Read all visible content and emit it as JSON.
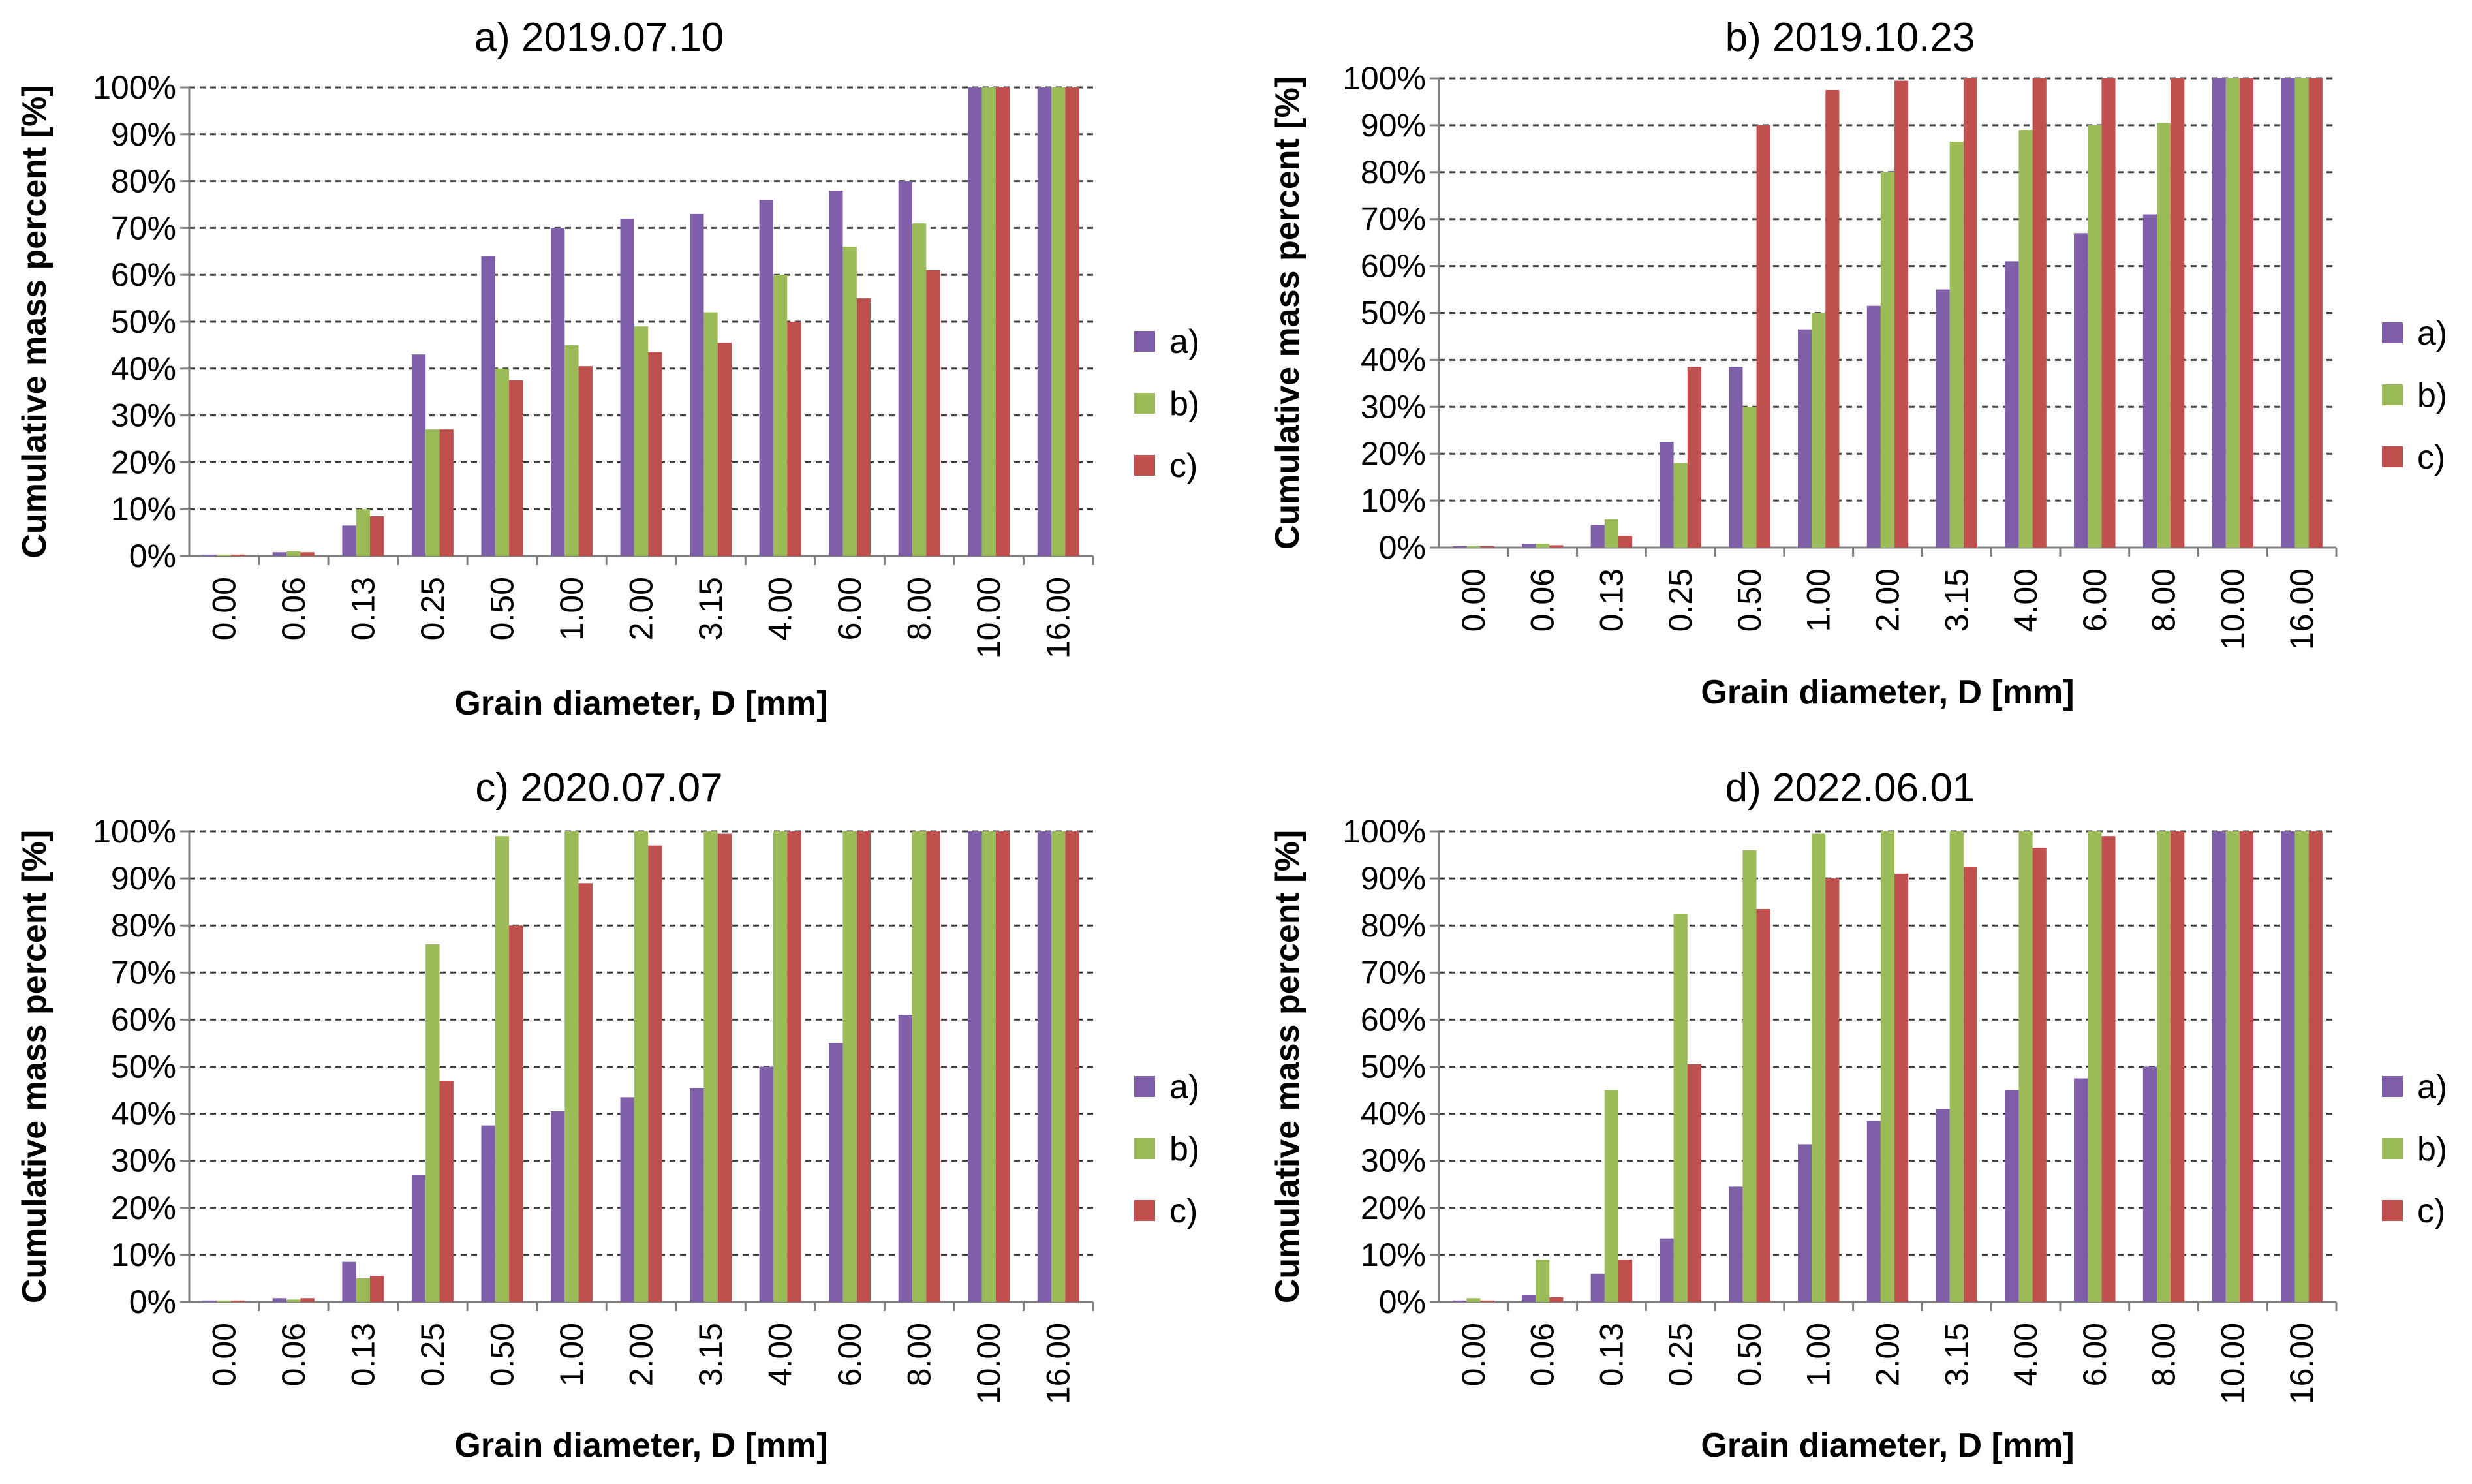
{
  "chart_data": [
    {
      "type": "bar",
      "title": "a) 2019.07.10",
      "xlabel": "Grain diameter, D [mm]",
      "ylabel": "Cumulative mass percent [%]",
      "ylim": [
        0,
        100
      ],
      "yticks": [
        "0%",
        "10%",
        "20%",
        "30%",
        "40%",
        "50%",
        "60%",
        "70%",
        "80%",
        "90%",
        "100%"
      ],
      "grid": true,
      "legend": "right",
      "categories": [
        "0.00",
        "0.06",
        "0.13",
        "0.25",
        "0.50",
        "1.00",
        "2.00",
        "3.15",
        "4.00",
        "6.00",
        "8.00",
        "10.00",
        "16.00"
      ],
      "series": [
        {
          "name": "a)",
          "color": "#7F5FA8",
          "values": [
            0.3,
            0.8,
            6.5,
            43,
            64,
            70,
            72,
            73,
            76,
            78,
            80,
            100,
            100
          ]
        },
        {
          "name": "b)",
          "color": "#9BBB59",
          "values": [
            0.3,
            1.0,
            10,
            27,
            40,
            45,
            49,
            52,
            60,
            66,
            71,
            100,
            100
          ]
        },
        {
          "name": "c)",
          "color": "#C0504D",
          "values": [
            0.3,
            0.8,
            8.5,
            27,
            37.5,
            40.5,
            43.5,
            45.5,
            50,
            55,
            61,
            100,
            100
          ]
        }
      ]
    },
    {
      "type": "bar",
      "title": "b) 2019.10.23",
      "xlabel": "Grain diameter, D [mm]",
      "ylabel": "Cumulative mass percent [%]",
      "ylim": [
        0,
        100
      ],
      "yticks": [
        "0%",
        "10%",
        "20%",
        "30%",
        "40%",
        "50%",
        "60%",
        "70%",
        "80%",
        "90%",
        "100%"
      ],
      "grid": true,
      "legend": "right",
      "categories": [
        "0.00",
        "0.06",
        "0.13",
        "0.25",
        "0.50",
        "1.00",
        "2.00",
        "3.15",
        "4.00",
        "6.00",
        "8.00",
        "10.00",
        "16.00"
      ],
      "series": [
        {
          "name": "a)",
          "color": "#7F5FA8",
          "values": [
            0.3,
            0.8,
            4.8,
            22.5,
            38.5,
            46.5,
            51.5,
            55,
            61,
            67,
            71,
            100,
            100
          ]
        },
        {
          "name": "b)",
          "color": "#9BBB59",
          "values": [
            0.3,
            0.8,
            6,
            18,
            30,
            50,
            80,
            86.5,
            89,
            90,
            90.5,
            100,
            100
          ]
        },
        {
          "name": "c)",
          "color": "#C0504D",
          "values": [
            0.3,
            0.5,
            2.5,
            38.5,
            90,
            97.5,
            99.5,
            100,
            100,
            100,
            100,
            100,
            100
          ]
        }
      ]
    },
    {
      "type": "bar",
      "title": "c) 2020.07.07",
      "xlabel": "Grain diameter, D [mm]",
      "ylabel": "Cumulative mass percent [%]",
      "ylim": [
        0,
        100
      ],
      "yticks": [
        "0%",
        "10%",
        "20%",
        "30%",
        "40%",
        "50%",
        "60%",
        "70%",
        "80%",
        "90%",
        "100%"
      ],
      "grid": true,
      "legend": "right",
      "categories": [
        "0.00",
        "0.06",
        "0.13",
        "0.25",
        "0.50",
        "1.00",
        "2.00",
        "3.15",
        "4.00",
        "6.00",
        "8.00",
        "10.00",
        "16.00"
      ],
      "series": [
        {
          "name": "a)",
          "color": "#7F5FA8",
          "values": [
            0.3,
            0.8,
            8.5,
            27,
            37.5,
            40.5,
            43.5,
            45.5,
            50,
            55,
            61,
            100,
            100
          ]
        },
        {
          "name": "b)",
          "color": "#9BBB59",
          "values": [
            0.3,
            0.5,
            5,
            76,
            99,
            100,
            100,
            100,
            100,
            100,
            100,
            100,
            100
          ]
        },
        {
          "name": "c)",
          "color": "#C0504D",
          "values": [
            0.3,
            0.8,
            5.5,
            47,
            80,
            89,
            97,
            99.5,
            100,
            100,
            100,
            100,
            100
          ]
        }
      ]
    },
    {
      "type": "bar",
      "title": "d) 2022.06.01",
      "xlabel": "Grain diameter, D [mm]",
      "ylabel": "Cumulative mass percent [%]",
      "ylim": [
        0,
        100
      ],
      "yticks": [
        "0%",
        "10%",
        "20%",
        "30%",
        "40%",
        "50%",
        "60%",
        "70%",
        "80%",
        "90%",
        "100%"
      ],
      "grid": true,
      "legend": "right",
      "categories": [
        "0.00",
        "0.06",
        "0.13",
        "0.25",
        "0.50",
        "1.00",
        "2.00",
        "3.15",
        "4.00",
        "6.00",
        "8.00",
        "10.00",
        "16.00"
      ],
      "series": [
        {
          "name": "a)",
          "color": "#7F5FA8",
          "values": [
            0.3,
            1.5,
            6,
            13.5,
            24.5,
            33.5,
            38.5,
            41,
            45,
            47.5,
            50,
            100,
            100
          ]
        },
        {
          "name": "b)",
          "color": "#9BBB59",
          "values": [
            0.8,
            9,
            45,
            82.5,
            96,
            99.5,
            100,
            100,
            100,
            100,
            100,
            100,
            100
          ]
        },
        {
          "name": "c)",
          "color": "#C0504D",
          "values": [
            0.3,
            1,
            9,
            50.5,
            83.5,
            90,
            91,
            92.5,
            96.5,
            99,
            100,
            100,
            100
          ]
        }
      ]
    }
  ]
}
